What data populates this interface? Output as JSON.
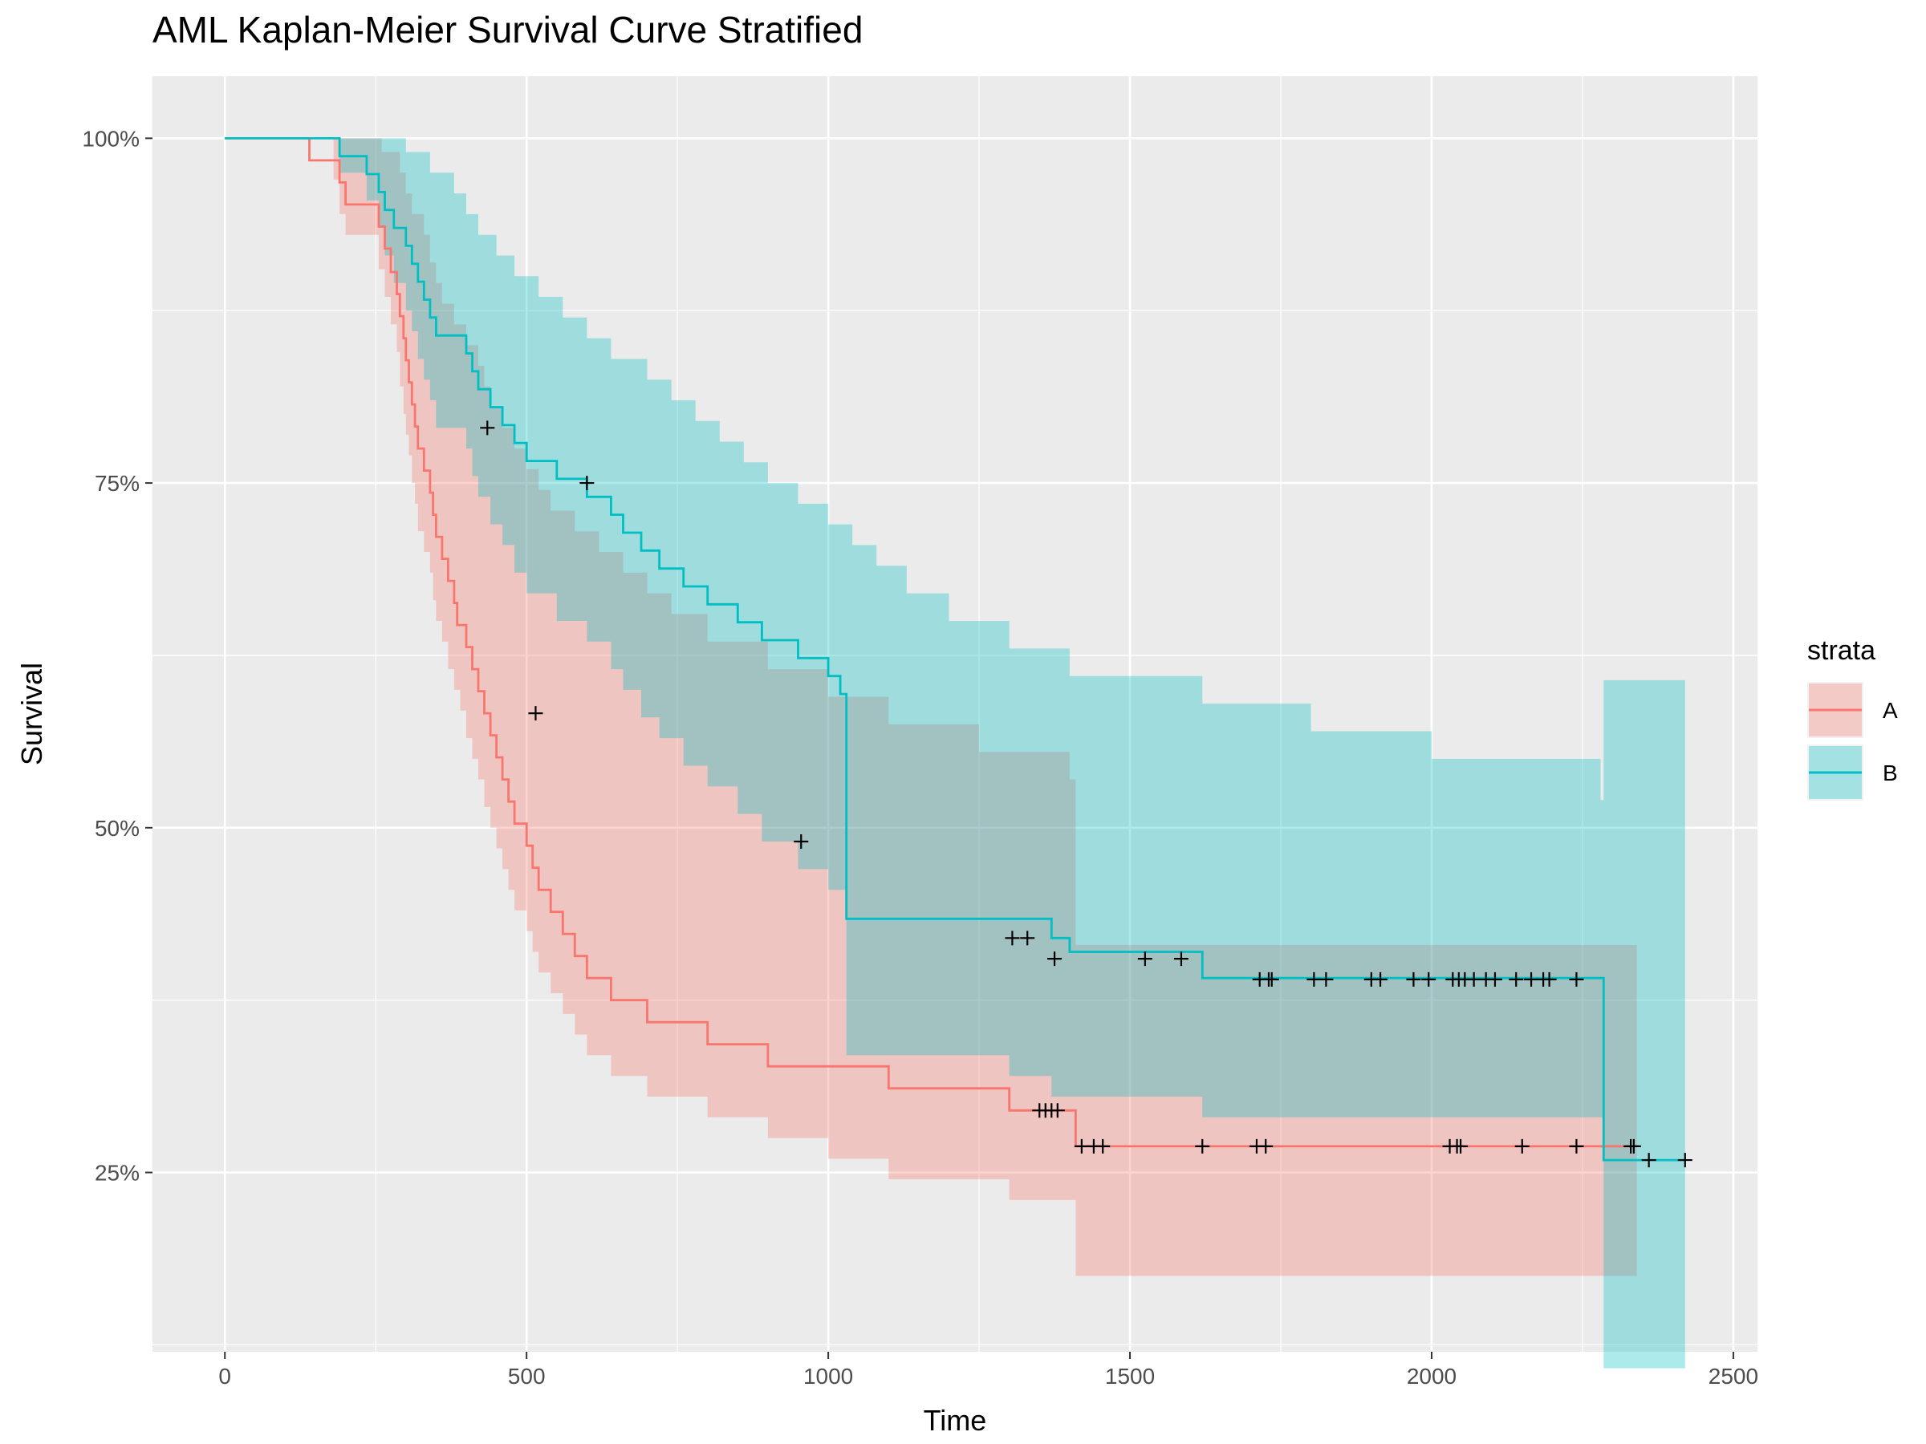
{
  "chart_data": {
    "type": "line",
    "title": "AML Kaplan-Meier Survival Curve Stratified",
    "xlabel": "Time",
    "ylabel": "Survival",
    "xlim": [
      -120,
      2540
    ],
    "ylim": [
      0.12,
      1.045
    ],
    "x_ticks": [
      0,
      500,
      1000,
      1500,
      2000,
      2500
    ],
    "x_tick_labels": [
      "0",
      "500",
      "1000",
      "1500",
      "2000",
      "2500"
    ],
    "y_ticks": [
      0.25,
      0.5,
      0.75,
      1.0
    ],
    "y_tick_labels": [
      "25%",
      "50%",
      "75%",
      "100%"
    ],
    "grid": true,
    "legend": {
      "title": "strata",
      "position": "right"
    },
    "series": [
      {
        "name": "A",
        "color": "#F8766D",
        "fill": "rgba(248,118,109,0.32)",
        "steps": [
          [
            0,
            1.0
          ],
          [
            140,
            0.984
          ],
          [
            190,
            0.968
          ],
          [
            200,
            0.952
          ],
          [
            255,
            0.936
          ],
          [
            265,
            0.92
          ],
          [
            275,
            0.903
          ],
          [
            285,
            0.887
          ],
          [
            290,
            0.871
          ],
          [
            296,
            0.855
          ],
          [
            300,
            0.839
          ],
          [
            305,
            0.823
          ],
          [
            310,
            0.807
          ],
          [
            315,
            0.791
          ],
          [
            320,
            0.775
          ],
          [
            330,
            0.759
          ],
          [
            340,
            0.743
          ],
          [
            345,
            0.727
          ],
          [
            350,
            0.711
          ],
          [
            360,
            0.695
          ],
          [
            370,
            0.679
          ],
          [
            380,
            0.663
          ],
          [
            385,
            0.647
          ],
          [
            400,
            0.631
          ],
          [
            410,
            0.615
          ],
          [
            420,
            0.599
          ],
          [
            430,
            0.583
          ],
          [
            440,
            0.567
          ],
          [
            450,
            0.551
          ],
          [
            460,
            0.535
          ],
          [
            470,
            0.519
          ],
          [
            480,
            0.503
          ],
          [
            500,
            0.487
          ],
          [
            510,
            0.471
          ],
          [
            520,
            0.455
          ],
          [
            540,
            0.439
          ],
          [
            560,
            0.423
          ],
          [
            580,
            0.407
          ],
          [
            600,
            0.391
          ],
          [
            640,
            0.375
          ],
          [
            700,
            0.359
          ],
          [
            800,
            0.343
          ],
          [
            900,
            0.327
          ],
          [
            1100,
            0.311
          ],
          [
            1300,
            0.295
          ],
          [
            1410,
            0.269
          ],
          [
            2340,
            0.269
          ]
        ],
        "upper": [
          [
            0,
            1.0
          ],
          [
            140,
            1.0
          ],
          [
            190,
            1.0
          ],
          [
            260,
            0.99
          ],
          [
            290,
            0.975
          ],
          [
            300,
            0.96
          ],
          [
            310,
            0.945
          ],
          [
            330,
            0.93
          ],
          [
            340,
            0.91
          ],
          [
            350,
            0.895
          ],
          [
            360,
            0.88
          ],
          [
            380,
            0.865
          ],
          [
            400,
            0.85
          ],
          [
            420,
            0.835
          ],
          [
            430,
            0.82
          ],
          [
            440,
            0.805
          ],
          [
            460,
            0.79
          ],
          [
            480,
            0.775
          ],
          [
            500,
            0.76
          ],
          [
            520,
            0.745
          ],
          [
            540,
            0.73
          ],
          [
            580,
            0.715
          ],
          [
            620,
            0.7
          ],
          [
            660,
            0.685
          ],
          [
            700,
            0.67
          ],
          [
            740,
            0.655
          ],
          [
            800,
            0.635
          ],
          [
            900,
            0.615
          ],
          [
            1000,
            0.595
          ],
          [
            1100,
            0.575
          ],
          [
            1250,
            0.555
          ],
          [
            1400,
            0.535
          ],
          [
            1410,
            0.415
          ],
          [
            2340,
            0.415
          ]
        ],
        "lower": [
          [
            0,
            1.0
          ],
          [
            140,
            1.0
          ],
          [
            180,
            0.97
          ],
          [
            190,
            0.945
          ],
          [
            200,
            0.93
          ],
          [
            255,
            0.905
          ],
          [
            265,
            0.885
          ],
          [
            275,
            0.865
          ],
          [
            285,
            0.845
          ],
          [
            290,
            0.82
          ],
          [
            296,
            0.8
          ],
          [
            300,
            0.785
          ],
          [
            305,
            0.77
          ],
          [
            310,
            0.75
          ],
          [
            315,
            0.735
          ],
          [
            320,
            0.715
          ],
          [
            330,
            0.7
          ],
          [
            340,
            0.685
          ],
          [
            345,
            0.665
          ],
          [
            350,
            0.65
          ],
          [
            360,
            0.635
          ],
          [
            370,
            0.615
          ],
          [
            380,
            0.6
          ],
          [
            390,
            0.585
          ],
          [
            400,
            0.565
          ],
          [
            410,
            0.55
          ],
          [
            420,
            0.535
          ],
          [
            430,
            0.515
          ],
          [
            440,
            0.5
          ],
          [
            450,
            0.485
          ],
          [
            460,
            0.47
          ],
          [
            470,
            0.455
          ],
          [
            480,
            0.44
          ],
          [
            500,
            0.425
          ],
          [
            510,
            0.41
          ],
          [
            520,
            0.395
          ],
          [
            540,
            0.38
          ],
          [
            560,
            0.365
          ],
          [
            580,
            0.35
          ],
          [
            600,
            0.335
          ],
          [
            640,
            0.32
          ],
          [
            700,
            0.305
          ],
          [
            800,
            0.29
          ],
          [
            900,
            0.275
          ],
          [
            1000,
            0.26
          ],
          [
            1100,
            0.245
          ],
          [
            1300,
            0.23
          ],
          [
            1410,
            0.175
          ],
          [
            2340,
            0.175
          ]
        ],
        "censored": [
          [
            515,
            0.583
          ],
          [
            1350,
            0.295
          ],
          [
            1360,
            0.295
          ],
          [
            1370,
            0.295
          ],
          [
            1380,
            0.295
          ],
          [
            1420,
            0.269
          ],
          [
            1440,
            0.269
          ],
          [
            1455,
            0.269
          ],
          [
            1620,
            0.269
          ],
          [
            1710,
            0.269
          ],
          [
            1725,
            0.269
          ],
          [
            2030,
            0.269
          ],
          [
            2042,
            0.269
          ],
          [
            2048,
            0.269
          ],
          [
            2150,
            0.269
          ],
          [
            2240,
            0.269
          ],
          [
            2330,
            0.269
          ]
        ]
      },
      {
        "name": "B",
        "color": "#00BFC4",
        "fill": "rgba(0,191,196,0.32)",
        "steps": [
          [
            0,
            1.0
          ],
          [
            190,
            0.987
          ],
          [
            235,
            0.974
          ],
          [
            255,
            0.961
          ],
          [
            265,
            0.948
          ],
          [
            280,
            0.935
          ],
          [
            300,
            0.922
          ],
          [
            310,
            0.909
          ],
          [
            320,
            0.896
          ],
          [
            330,
            0.883
          ],
          [
            340,
            0.87
          ],
          [
            350,
            0.857
          ],
          [
            400,
            0.844
          ],
          [
            410,
            0.831
          ],
          [
            420,
            0.818
          ],
          [
            440,
            0.805
          ],
          [
            460,
            0.792
          ],
          [
            480,
            0.779
          ],
          [
            500,
            0.766
          ],
          [
            550,
            0.753
          ],
          [
            600,
            0.74
          ],
          [
            640,
            0.727
          ],
          [
            660,
            0.714
          ],
          [
            690,
            0.701
          ],
          [
            720,
            0.688
          ],
          [
            760,
            0.675
          ],
          [
            800,
            0.662
          ],
          [
            850,
            0.649
          ],
          [
            890,
            0.636
          ],
          [
            950,
            0.623
          ],
          [
            1000,
            0.61
          ],
          [
            1020,
            0.597
          ],
          [
            1030,
            0.434
          ],
          [
            1300,
            0.434
          ],
          [
            1370,
            0.42
          ],
          [
            1400,
            0.41
          ],
          [
            1620,
            0.391
          ],
          [
            2280,
            0.391
          ],
          [
            2285,
            0.259
          ],
          [
            2420,
            0.259
          ]
        ],
        "upper": [
          [
            0,
            1.0
          ],
          [
            190,
            1.0
          ],
          [
            250,
            1.0
          ],
          [
            300,
            0.99
          ],
          [
            340,
            0.975
          ],
          [
            380,
            0.96
          ],
          [
            400,
            0.945
          ],
          [
            420,
            0.93
          ],
          [
            450,
            0.915
          ],
          [
            480,
            0.9
          ],
          [
            520,
            0.885
          ],
          [
            560,
            0.87
          ],
          [
            600,
            0.855
          ],
          [
            640,
            0.84
          ],
          [
            700,
            0.825
          ],
          [
            740,
            0.81
          ],
          [
            780,
            0.795
          ],
          [
            820,
            0.78
          ],
          [
            860,
            0.765
          ],
          [
            900,
            0.75
          ],
          [
            950,
            0.735
          ],
          [
            1000,
            0.72
          ],
          [
            1040,
            0.705
          ],
          [
            1080,
            0.69
          ],
          [
            1130,
            0.67
          ],
          [
            1200,
            0.65
          ],
          [
            1300,
            0.63
          ],
          [
            1400,
            0.61
          ],
          [
            1620,
            0.59
          ],
          [
            1800,
            0.57
          ],
          [
            2000,
            0.55
          ],
          [
            2280,
            0.52
          ],
          [
            2285,
            0.607
          ],
          [
            2420,
            0.607
          ]
        ],
        "lower": [
          [
            0,
            1.0
          ],
          [
            190,
            0.975
          ],
          [
            235,
            0.955
          ],
          [
            255,
            0.935
          ],
          [
            265,
            0.915
          ],
          [
            280,
            0.895
          ],
          [
            300,
            0.875
          ],
          [
            310,
            0.86
          ],
          [
            320,
            0.84
          ],
          [
            330,
            0.825
          ],
          [
            340,
            0.81
          ],
          [
            350,
            0.79
          ],
          [
            400,
            0.775
          ],
          [
            410,
            0.755
          ],
          [
            420,
            0.74
          ],
          [
            440,
            0.72
          ],
          [
            460,
            0.705
          ],
          [
            480,
            0.685
          ],
          [
            500,
            0.67
          ],
          [
            550,
            0.65
          ],
          [
            600,
            0.635
          ],
          [
            640,
            0.615
          ],
          [
            660,
            0.6
          ],
          [
            690,
            0.58
          ],
          [
            720,
            0.565
          ],
          [
            760,
            0.545
          ],
          [
            800,
            0.53
          ],
          [
            850,
            0.51
          ],
          [
            890,
            0.49
          ],
          [
            950,
            0.47
          ],
          [
            1000,
            0.455
          ],
          [
            1030,
            0.335
          ],
          [
            1300,
            0.32
          ],
          [
            1370,
            0.305
          ],
          [
            1620,
            0.29
          ],
          [
            2280,
            0.29
          ],
          [
            2285,
            0.108
          ],
          [
            2420,
            0.108
          ]
        ],
        "censored": [
          [
            435,
            0.79
          ],
          [
            600,
            0.75
          ],
          [
            955,
            0.49
          ],
          [
            1305,
            0.42
          ],
          [
            1330,
            0.42
          ],
          [
            1375,
            0.405
          ],
          [
            1525,
            0.405
          ],
          [
            1585,
            0.405
          ],
          [
            1715,
            0.39
          ],
          [
            1730,
            0.39
          ],
          [
            1735,
            0.39
          ],
          [
            1805,
            0.39
          ],
          [
            1825,
            0.39
          ],
          [
            1900,
            0.39
          ],
          [
            1915,
            0.39
          ],
          [
            1970,
            0.39
          ],
          [
            1995,
            0.39
          ],
          [
            2035,
            0.39
          ],
          [
            2045,
            0.39
          ],
          [
            2055,
            0.39
          ],
          [
            2070,
            0.39
          ],
          [
            2090,
            0.39
          ],
          [
            2105,
            0.39
          ],
          [
            2140,
            0.39
          ],
          [
            2165,
            0.39
          ],
          [
            2185,
            0.39
          ],
          [
            2195,
            0.39
          ],
          [
            2240,
            0.39
          ],
          [
            2335,
            0.269
          ],
          [
            2360,
            0.259
          ],
          [
            2420,
            0.259
          ]
        ]
      }
    ]
  }
}
